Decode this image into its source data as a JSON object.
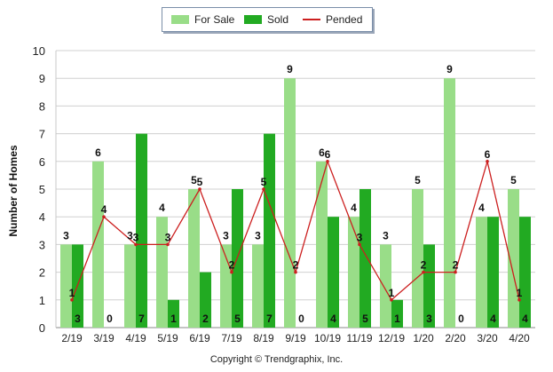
{
  "chart_data": {
    "type": "bar",
    "title": "",
    "xlabel": "",
    "ylabel": "Number of Homes",
    "ylim": [
      0,
      10
    ],
    "yticks": [
      "0",
      "1",
      "2",
      "3",
      "4",
      "5",
      "6",
      "7",
      "8",
      "9",
      "10"
    ],
    "grid": true,
    "legend_position": "top-center",
    "categories": [
      "2/19",
      "3/19",
      "4/19",
      "5/19",
      "6/19",
      "7/19",
      "8/19",
      "9/19",
      "10/19",
      "11/19",
      "12/19",
      "1/20",
      "2/20",
      "3/20",
      "4/20"
    ],
    "series": [
      {
        "name": "For Sale",
        "type": "bar",
        "color": "#99dd88",
        "values": [
          3,
          6,
          3,
          4,
          5,
          3,
          3,
          9,
          6,
          4,
          3,
          5,
          9,
          4,
          5
        ]
      },
      {
        "name": "Sold",
        "type": "bar",
        "color": "#22aa22",
        "values": [
          3,
          0,
          7,
          1,
          2,
          5,
          7,
          0,
          4,
          5,
          1,
          3,
          0,
          4,
          4
        ]
      },
      {
        "name": "Pended",
        "type": "line",
        "color": "#cc1f1f",
        "values": [
          1,
          4,
          3,
          3,
          5,
          2,
          5,
          2,
          6,
          3,
          1,
          2,
          2,
          6,
          1
        ]
      }
    ]
  },
  "footer": {
    "copyright": "Copyright © Trendgraphix, Inc."
  }
}
